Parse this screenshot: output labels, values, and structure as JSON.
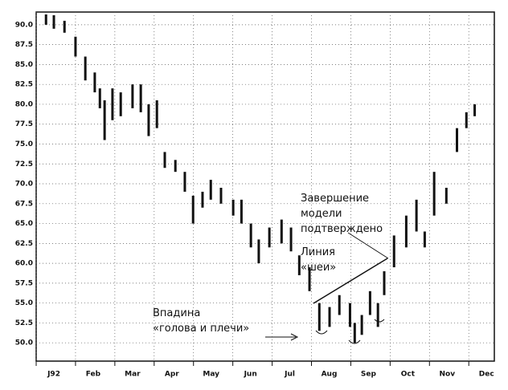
{
  "chart_data": {
    "type": "range-bar",
    "x": [
      -0.2,
      0,
      0.27,
      0.55,
      0.8,
      1.04,
      1.17,
      1.29,
      1.49,
      1.7,
      2.0,
      2.21,
      2.41,
      2.62,
      2.82,
      3.09,
      3.33,
      3.54,
      3.78,
      3.99,
      4.25,
      4.56,
      4.77,
      5.01,
      5.21,
      5.48,
      5.79,
      6.03,
      6.24,
      6.5,
      6.75,
      7.01,
      7.26,
      7.53,
      7.65,
      7.83,
      8.04,
      8.24,
      8.4,
      8.65,
      8.96,
      9.22,
      9.43,
      9.67,
      9.98,
      10.25,
      10.49,
      10.7
    ],
    "series": [
      {
        "color": "#111111",
        "low": [
          90.0,
          89.5,
          89.0,
          86.0,
          83.0,
          81.5,
          79.5,
          75.5,
          78.0,
          78.5,
          79.5,
          79.0,
          76.0,
          77.0,
          72.0,
          71.5,
          69.0,
          65.0,
          67.0,
          68.0,
          67.5,
          66.0,
          65.0,
          62.0,
          60.0,
          62.0,
          62.5,
          61.5,
          58.5,
          56.5,
          51.5,
          52.0,
          53.5,
          52.0,
          50.0,
          51.0,
          53.5,
          52.0,
          56.0,
          59.5,
          62.0,
          64.0,
          62.0,
          66.0,
          67.5,
          74.0,
          77.0,
          78.5
        ],
        "high": [
          91.3,
          91.2,
          90.5,
          88.5,
          86.0,
          84.0,
          82.0,
          80.5,
          82.0,
          81.5,
          82.5,
          82.5,
          80.0,
          80.5,
          74.0,
          73.0,
          71.5,
          68.5,
          69.0,
          70.5,
          69.5,
          68.0,
          68.0,
          65.0,
          63.0,
          64.5,
          65.5,
          64.5,
          61.0,
          59.5,
          55.0,
          54.5,
          56.0,
          55.0,
          52.5,
          53.5,
          56.5,
          55.0,
          59.0,
          63.5,
          66.0,
          68.0,
          64.0,
          71.5,
          69.5,
          77.0,
          79.0,
          80.0
        ]
      }
    ],
    "xlim": [
      -0.45,
      11.2
    ],
    "ylim": [
      47.7,
      91.6
    ],
    "xticks": [
      {
        "value": 0,
        "label": "J92"
      },
      {
        "value": 1,
        "label": "Feb"
      },
      {
        "value": 2,
        "label": "Mar"
      },
      {
        "value": 3,
        "label": "Apr"
      },
      {
        "value": 4,
        "label": "May"
      },
      {
        "value": 5,
        "label": "Jun"
      },
      {
        "value": 6,
        "label": "Jul"
      },
      {
        "value": 7,
        "label": "Aug"
      },
      {
        "value": 8,
        "label": "Sep"
      },
      {
        "value": 9,
        "label": "Oct"
      },
      {
        "value": 10,
        "label": "Nov"
      },
      {
        "value": 11,
        "label": "Dec"
      }
    ],
    "yticks": [
      {
        "value": 50,
        "label": "50.0"
      },
      {
        "value": 52.5,
        "label": "52.5"
      },
      {
        "value": 55,
        "label": "55.0"
      },
      {
        "value": 57.5,
        "label": "57.5"
      },
      {
        "value": 60,
        "label": "60.0"
      },
      {
        "value": 62.5,
        "label": "62.5"
      },
      {
        "value": 65,
        "label": "65.0"
      },
      {
        "value": 67.5,
        "label": "67.5"
      },
      {
        "value": 70,
        "label": "70.0"
      },
      {
        "value": 72.5,
        "label": "72.5"
      },
      {
        "value": 75,
        "label": "75.0"
      },
      {
        "value": 77.5,
        "label": "77.5"
      },
      {
        "value": 80,
        "label": "80.0"
      },
      {
        "value": 82.5,
        "label": "82.5"
      },
      {
        "value": 85,
        "label": "85.0"
      },
      {
        "value": 87.5,
        "label": "87.5"
      },
      {
        "value": 90,
        "label": "90.0"
      }
    ],
    "grid": true,
    "annotations": [
      [
        "Завершение",
        "модели",
        "подтверждено"
      ],
      [
        "Линия",
        "«шеи»"
      ],
      [
        "Впадина",
        "«голова и плечи»"
      ]
    ]
  }
}
